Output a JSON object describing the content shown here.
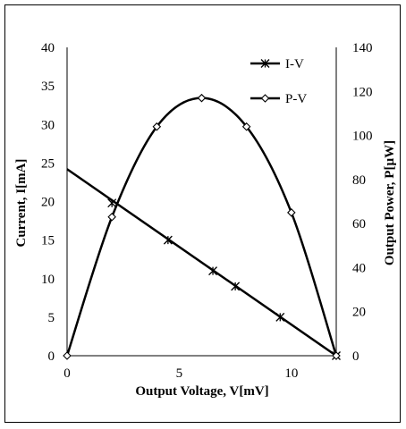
{
  "chart_data": {
    "type": "line",
    "xlabel": "Output Voltage, V[mV]",
    "ylabel_left": "Current, I[mA]",
    "ylabel_right": "Output Power, P[µW]",
    "xlim": [
      0,
      12
    ],
    "ylim_left": [
      0,
      40
    ],
    "ylim_right": [
      0,
      140
    ],
    "x_ticks": [
      0,
      5,
      10
    ],
    "y_left_ticks": [
      0,
      5,
      10,
      15,
      20,
      25,
      30,
      35,
      40
    ],
    "y_right_ticks": [
      0,
      20,
      40,
      60,
      80,
      100,
      120,
      140
    ],
    "grid": false,
    "legend_position": "top-right",
    "series": [
      {
        "name": "I-V",
        "axis": "left",
        "marker": "asterisk",
        "line": {
          "x": [
            0,
            12
          ],
          "y": [
            24.2,
            0
          ]
        },
        "points": {
          "x": [
            2,
            4.5,
            6.5,
            7.5,
            9.5,
            12
          ],
          "y": [
            19.8,
            15,
            11,
            9,
            5,
            0
          ]
        }
      },
      {
        "name": "P-V",
        "axis": "right",
        "marker": "diamond",
        "points": {
          "x": [
            0,
            2,
            4,
            6,
            8,
            10,
            12
          ],
          "y": [
            0,
            63,
            104,
            117,
            104,
            65,
            0
          ]
        }
      }
    ]
  }
}
